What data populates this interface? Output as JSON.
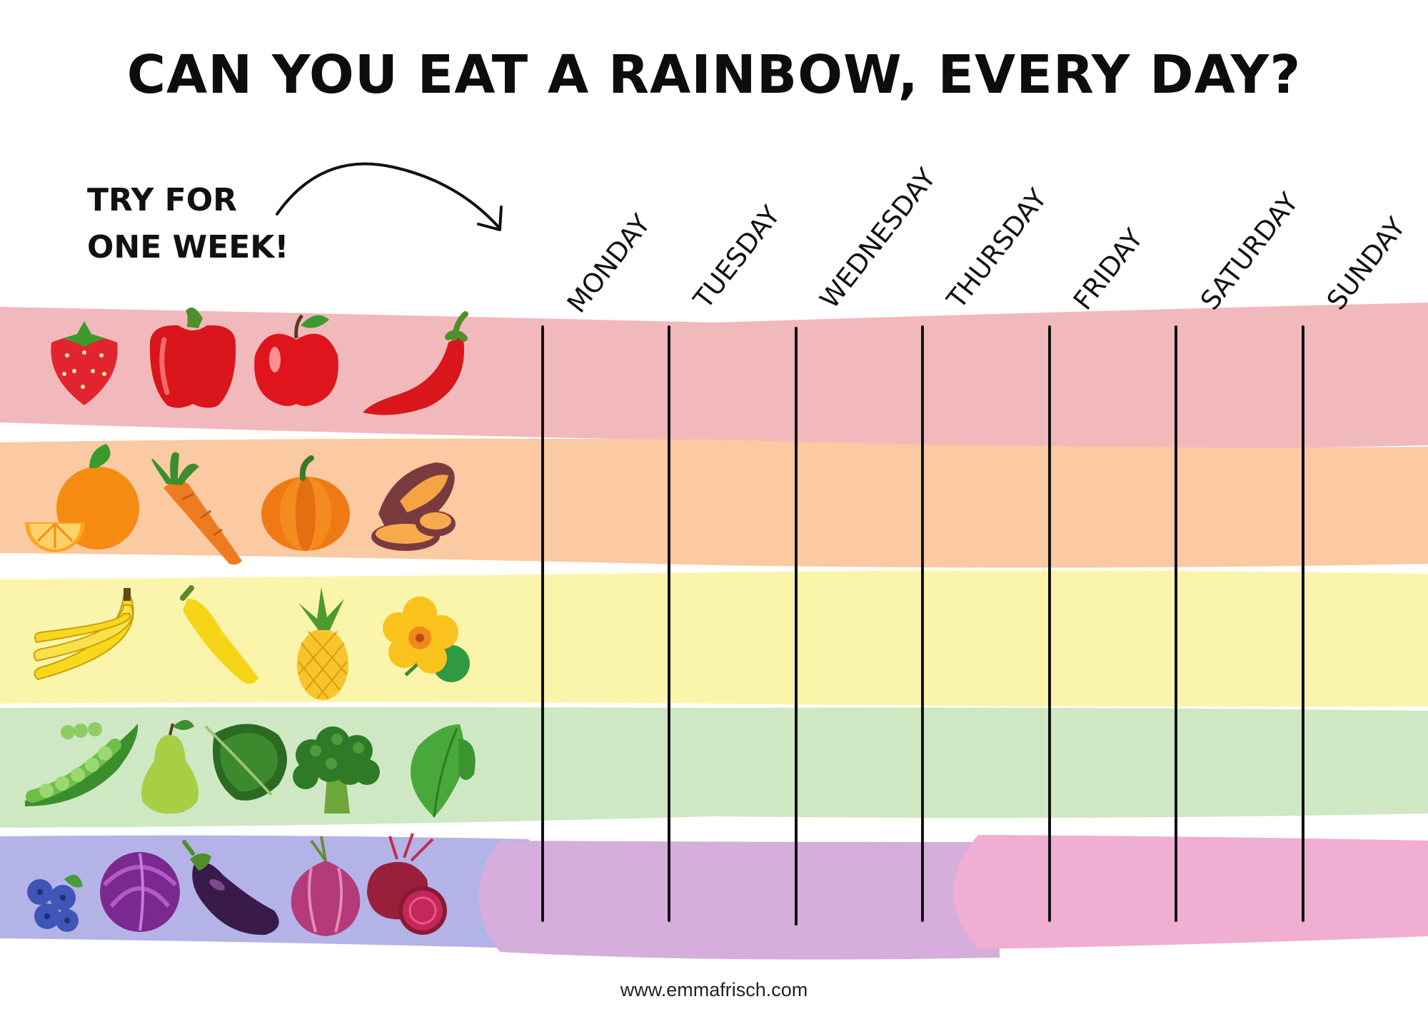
{
  "title": "CAN YOU EAT A RAINBOW, EVERY DAY?",
  "prompt": {
    "line1": "TRY FOR",
    "line2": "ONE WEEK!"
  },
  "days": [
    "MONDAY",
    "TUESDAY",
    "WEDNESDAY",
    "THURSDAY",
    "FRIDAY",
    "SATURDAY",
    "SUNDAY"
  ],
  "rows": [
    {
      "color_name": "red",
      "band_color": "#f2b9bc",
      "foods": [
        "strawberry-icon",
        "red-pepper-icon",
        "red-apple-icon",
        "chili-pepper-icon"
      ]
    },
    {
      "color_name": "orange",
      "band_color": "#fbc9a2",
      "foods": [
        "orange-icon",
        "carrot-icon",
        "pumpkin-icon",
        "sweet-potato-icon"
      ]
    },
    {
      "color_name": "yellow",
      "band_color": "#fbf5ab",
      "foods": [
        "banana-icon",
        "yellow-zucchini-icon",
        "pineapple-icon",
        "nasturtium-icon"
      ]
    },
    {
      "color_name": "green",
      "band_color": "#cfe8c4",
      "foods": [
        "peas-icon",
        "pear-icon",
        "kale-icon",
        "broccoli-icon",
        "leaf-icon"
      ]
    },
    {
      "color_name": "purple",
      "band_colors": [
        "#b4b3e8",
        "#d6aedc",
        "#efaed2"
      ],
      "foods": [
        "blueberry-icon",
        "red-cabbage-icon",
        "eggplant-icon",
        "red-onion-icon",
        "beetroot-icon"
      ]
    }
  ],
  "footer": "www.emmafrisch.com"
}
